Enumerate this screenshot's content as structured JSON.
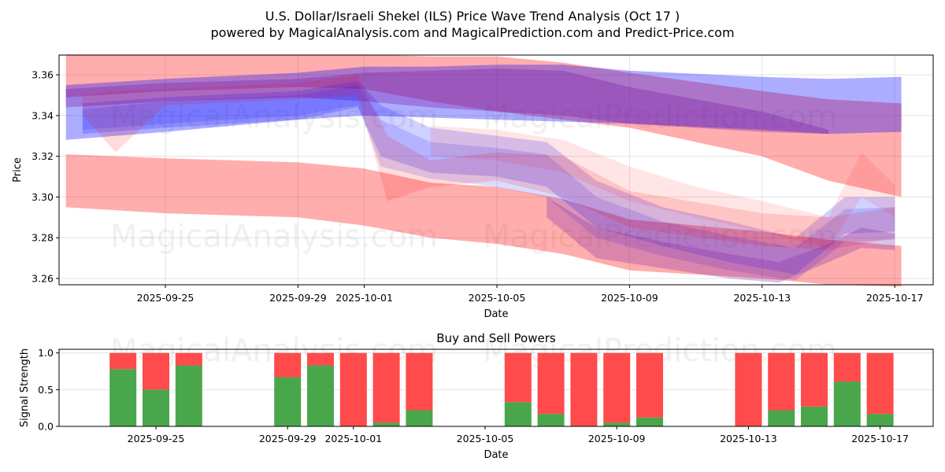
{
  "chart_data": [
    {
      "type": "area",
      "title": "U.S. Dollar/Israeli Shekel (ILS) Price Wave Trend Analysis (Oct 17 )",
      "subtitle": "powered by MagicalAnalysis.com and MagicalPrediction.com and Predict-Price.com",
      "xlabel": "Date",
      "ylabel": "Price",
      "xlim": [
        "2025-09-21.8",
        "2025-10-18.2"
      ],
      "ylim": [
        3.2569,
        3.3697
      ],
      "x_ticks": [
        "2025-09-25",
        "2025-09-29",
        "2025-10-01",
        "2025-10-05",
        "2025-10-09",
        "2025-10-13",
        "2025-10-17"
      ],
      "y_ticks": [
        "3.26",
        "3.28",
        "3.30",
        "3.32",
        "3.34",
        "3.36"
      ],
      "grid": true,
      "watermarks": [
        "MagicalAnalysis.com",
        "MagicalPrediction.com"
      ],
      "series": [
        {
          "name": "red-band-upper",
          "color": "#ff0000",
          "opacity": 0.32,
          "x": [
            "2025-09-22",
            "2025-09-25",
            "2025-09-29",
            "2025-10-01",
            "2025-10-03",
            "2025-10-05",
            "2025-10-07",
            "2025-10-09",
            "2025-10-13",
            "2025-10-15",
            "2025-10-17.2"
          ],
          "upper": [
            3.37,
            3.37,
            3.37,
            3.37,
            3.369,
            3.369,
            3.366,
            3.361,
            3.352,
            3.348,
            3.346
          ],
          "lower": [
            3.349,
            3.352,
            3.354,
            3.353,
            3.347,
            3.342,
            3.338,
            3.334,
            3.32,
            3.308,
            3.3
          ]
        },
        {
          "name": "red-band-lower",
          "color": "#ff0000",
          "opacity": 0.32,
          "x": [
            "2025-09-22",
            "2025-09-25",
            "2025-09-29",
            "2025-10-01",
            "2025-10-03",
            "2025-10-05",
            "2025-10-07",
            "2025-10-09",
            "2025-10-13",
            "2025-10-15",
            "2025-10-17.2"
          ],
          "upper": [
            3.321,
            3.319,
            3.317,
            3.314,
            3.307,
            3.305,
            3.299,
            3.289,
            3.283,
            3.279,
            3.276
          ],
          "lower": [
            3.295,
            3.292,
            3.29,
            3.286,
            3.28,
            3.277,
            3.272,
            3.264,
            3.26,
            3.257,
            3.256
          ]
        },
        {
          "name": "blue-band-upper",
          "color": "#0000ff",
          "opacity": 0.32,
          "x": [
            "2025-09-22",
            "2025-09-25",
            "2025-09-29",
            "2025-10-01",
            "2025-10-03",
            "2025-10-05",
            "2025-10-07",
            "2025-10-09",
            "2025-10-13",
            "2025-10-15",
            "2025-10-17.2"
          ],
          "upper": [
            3.355,
            3.358,
            3.361,
            3.364,
            3.364,
            3.365,
            3.365,
            3.362,
            3.359,
            3.358,
            3.359
          ],
          "lower": [
            3.328,
            3.332,
            3.338,
            3.34,
            3.339,
            3.338,
            3.337,
            3.336,
            3.333,
            3.331,
            3.332
          ]
        },
        {
          "name": "purple-main-band",
          "color": "#7a1fa8",
          "opacity": 0.35,
          "x": [
            "2025-09-22",
            "2025-09-25",
            "2025-09-29",
            "2025-10-01",
            "2025-10-03",
            "2025-10-05",
            "2025-10-07",
            "2025-10-09",
            "2025-10-13",
            "2025-10-15"
          ],
          "upper": [
            3.353,
            3.356,
            3.358,
            3.361,
            3.362,
            3.363,
            3.362,
            3.354,
            3.342,
            3.333
          ],
          "lower": [
            3.344,
            3.347,
            3.349,
            3.347,
            3.344,
            3.342,
            3.34,
            3.336,
            3.332,
            3.331
          ]
        },
        {
          "name": "blue-wave-1",
          "color": "#0000ff",
          "opacity": 0.18,
          "x": [
            "2025-09-22.5",
            "2025-09-25",
            "2025-09-29",
            "2025-09-30.8",
            "2025-10-01.5",
            "2025-10-03",
            "2025-10-05",
            "2025-10-06.5",
            "2025-10-08",
            "2025-10-10",
            "2025-10-12",
            "2025-10-14",
            "2025-10-15.5",
            "2025-10-17"
          ],
          "upper": [
            3.346,
            3.349,
            3.352,
            3.357,
            3.345,
            3.334,
            3.33,
            3.327,
            3.308,
            3.295,
            3.288,
            3.28,
            3.3,
            3.3
          ],
          "lower": [
            3.331,
            3.334,
            3.338,
            3.344,
            3.32,
            3.312,
            3.31,
            3.305,
            3.285,
            3.276,
            3.268,
            3.262,
            3.282,
            3.283
          ]
        },
        {
          "name": "blue-wave-2",
          "color": "#0000ff",
          "opacity": 0.14,
          "x": [
            "2025-09-22.5",
            "2025-09-25",
            "2025-09-29",
            "2025-09-30.8",
            "2025-10-01.5",
            "2025-10-03",
            "2025-10-05",
            "2025-10-06.5",
            "2025-10-08",
            "2025-10-10",
            "2025-10-12",
            "2025-10-14",
            "2025-10-15.5",
            "2025-10-17"
          ],
          "upper": [
            3.343,
            3.347,
            3.35,
            3.355,
            3.338,
            3.327,
            3.324,
            3.321,
            3.3,
            3.288,
            3.281,
            3.275,
            3.294,
            3.295
          ],
          "lower": [
            3.333,
            3.336,
            3.34,
            3.345,
            3.315,
            3.309,
            3.305,
            3.3,
            3.28,
            3.271,
            3.264,
            3.259,
            3.278,
            3.279
          ]
        },
        {
          "name": "red-wave-1",
          "color": "#ff0000",
          "opacity": 0.14,
          "x": [
            "2025-09-22.5",
            "2025-09-23.5",
            "2025-09-25",
            "2025-09-29",
            "2025-09-30.8",
            "2025-10-01.7",
            "2025-10-03",
            "2025-10-05",
            "2025-10-07",
            "2025-10-09",
            "2025-10-13",
            "2025-10-15",
            "2025-10-17"
          ],
          "upper": [
            3.35,
            3.352,
            3.353,
            3.356,
            3.36,
            3.33,
            3.318,
            3.322,
            3.32,
            3.303,
            3.292,
            3.29,
            3.295
          ],
          "lower": [
            3.34,
            3.322,
            3.345,
            3.348,
            3.35,
            3.298,
            3.305,
            3.308,
            3.3,
            3.285,
            3.276,
            3.274,
            3.28
          ]
        },
        {
          "name": "red-wave-2",
          "color": "#ff0000",
          "opacity": 0.1,
          "x": [
            "2025-10-03",
            "2025-10-05",
            "2025-10-07",
            "2025-10-09",
            "2025-10-11",
            "2025-10-13",
            "2025-10-15",
            "2025-10-16",
            "2025-10-17"
          ],
          "upper": [
            3.335,
            3.333,
            3.328,
            3.315,
            3.305,
            3.298,
            3.29,
            3.322,
            3.306
          ],
          "lower": [
            3.32,
            3.318,
            3.312,
            3.298,
            3.29,
            3.283,
            3.275,
            3.3,
            3.29
          ]
        },
        {
          "name": "purple-low-wave",
          "color": "#7a1fa8",
          "opacity": 0.28,
          "x": [
            "2025-10-06.5",
            "2025-10-08",
            "2025-10-10",
            "2025-10-12",
            "2025-10-13.5",
            "2025-10-15",
            "2025-10-16",
            "2025-10-17"
          ],
          "upper": [
            3.3,
            3.285,
            3.278,
            3.272,
            3.268,
            3.277,
            3.285,
            3.282
          ],
          "lower": [
            3.29,
            3.27,
            3.265,
            3.26,
            3.258,
            3.268,
            3.275,
            3.274
          ]
        }
      ]
    },
    {
      "type": "bar",
      "title": "Buy and Sell Powers",
      "xlabel": "Date",
      "ylabel": "Signal Strength",
      "ylim": [
        0,
        1.05
      ],
      "y_ticks": [
        "0.0",
        "0.5",
        "1.0"
      ],
      "x_ticks": [
        "2025-09-25",
        "2025-09-29",
        "2025-10-01",
        "2025-10-05",
        "2025-10-09",
        "2025-10-13",
        "2025-10-17"
      ],
      "grid": true,
      "watermarks": [
        "MagicalAnalysis.com",
        "MagicalPrediction.com"
      ],
      "stacked": true,
      "categories": [
        "2025-09-24",
        "2025-09-25",
        "2025-09-26",
        "2025-09-29",
        "2025-09-30",
        "2025-10-01",
        "2025-10-02",
        "2025-10-03",
        "2025-10-06",
        "2025-10-07",
        "2025-10-08",
        "2025-10-09",
        "2025-10-10",
        "2025-10-13",
        "2025-10-14",
        "2025-10-15",
        "2025-10-16",
        "2025-10-17"
      ],
      "series": [
        {
          "name": "Buy",
          "color": "#4aa64a",
          "values": [
            0.78,
            0.5,
            0.83,
            0.67,
            0.83,
            0.0,
            0.05,
            0.22,
            0.33,
            0.17,
            0.0,
            0.05,
            0.12,
            0.0,
            0.22,
            0.27,
            0.61,
            0.17
          ]
        },
        {
          "name": "Sell",
          "color": "#ff4b4b",
          "values": [
            0.22,
            0.5,
            0.17,
            0.33,
            0.17,
            1.0,
            0.95,
            0.78,
            0.67,
            0.83,
            1.0,
            0.95,
            0.88,
            1.0,
            0.78,
            0.73,
            0.39,
            0.83
          ]
        }
      ]
    }
  ]
}
